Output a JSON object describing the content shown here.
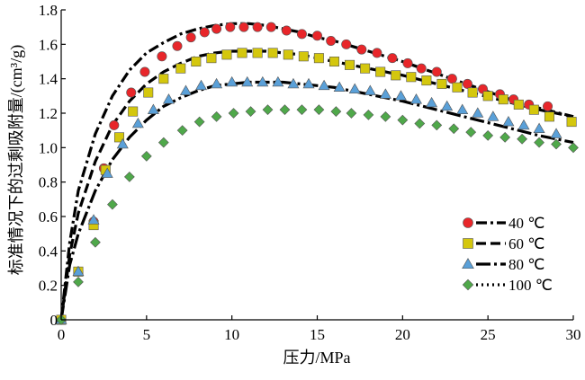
{
  "chart_data": {
    "type": "scatter",
    "xlabel": "压力/MPa",
    "ylabel": "标准情况下的过剩吸附量/(cm³/g)",
    "xlim": [
      0,
      30
    ],
    "ylim": [
      0,
      1.8
    ],
    "xticks": [
      "0",
      "5",
      "10",
      "15",
      "20",
      "25",
      "30"
    ],
    "yticks": [
      "0",
      "0.2",
      "0.4",
      "0.6",
      "0.8",
      "1.0",
      "1.2",
      "1.4",
      "1.6",
      "1.8"
    ],
    "grid": false,
    "legend_position": "bottom-right",
    "series": [
      {
        "name": "40 ℃",
        "marker": "circle",
        "marker_color": "#e8262a",
        "line_style": "dash-dot",
        "points": [
          [
            0,
            0
          ],
          [
            1,
            0.28
          ],
          [
            1.9,
            0.57
          ],
          [
            2.5,
            0.88
          ],
          [
            3.1,
            1.13
          ],
          [
            4.1,
            1.32
          ],
          [
            4.9,
            1.44
          ],
          [
            5.9,
            1.53
          ],
          [
            6.8,
            1.59
          ],
          [
            7.6,
            1.64
          ],
          [
            8.4,
            1.67
          ],
          [
            9.1,
            1.69
          ],
          [
            9.9,
            1.7
          ],
          [
            10.7,
            1.7
          ],
          [
            11.5,
            1.7
          ],
          [
            12.3,
            1.7
          ],
          [
            13.2,
            1.68
          ],
          [
            14.1,
            1.66
          ],
          [
            15,
            1.65
          ],
          [
            15.8,
            1.62
          ],
          [
            16.7,
            1.6
          ],
          [
            17.6,
            1.57
          ],
          [
            18.5,
            1.55
          ],
          [
            19.4,
            1.52
          ],
          [
            20.3,
            1.49
          ],
          [
            21.1,
            1.46
          ],
          [
            22,
            1.44
          ],
          [
            22.9,
            1.4
          ],
          [
            23.8,
            1.37
          ],
          [
            24.7,
            1.34
          ],
          [
            25.7,
            1.31
          ],
          [
            26.5,
            1.28
          ],
          [
            27.4,
            1.25
          ],
          [
            28.5,
            1.24
          ]
        ],
        "curve": [
          [
            0,
            0
          ],
          [
            0.5,
            0.45
          ],
          [
            1,
            0.75
          ],
          [
            2,
            1.08
          ],
          [
            3,
            1.3
          ],
          [
            4,
            1.45
          ],
          [
            5,
            1.55
          ],
          [
            6,
            1.61
          ],
          [
            7,
            1.66
          ],
          [
            8,
            1.69
          ],
          [
            9,
            1.71
          ],
          [
            10,
            1.72
          ],
          [
            11,
            1.72
          ],
          [
            12,
            1.71
          ],
          [
            13,
            1.69
          ],
          [
            14,
            1.67
          ],
          [
            15,
            1.64
          ],
          [
            16,
            1.62
          ],
          [
            18,
            1.56
          ],
          [
            20,
            1.5
          ],
          [
            22,
            1.43
          ],
          [
            24,
            1.36
          ],
          [
            26,
            1.29
          ],
          [
            28,
            1.23
          ],
          [
            30,
            1.18
          ]
        ]
      },
      {
        "name": "60 ℃",
        "marker": "square",
        "marker_color": "#d4c70d",
        "line_style": "dash",
        "points": [
          [
            0,
            0
          ],
          [
            1,
            0.28
          ],
          [
            1.9,
            0.55
          ],
          [
            2.6,
            0.87
          ],
          [
            3.4,
            1.06
          ],
          [
            4.2,
            1.21
          ],
          [
            5.1,
            1.32
          ],
          [
            6,
            1.4
          ],
          [
            7,
            1.46
          ],
          [
            7.9,
            1.5
          ],
          [
            8.8,
            1.52
          ],
          [
            9.7,
            1.54
          ],
          [
            10.6,
            1.55
          ],
          [
            11.5,
            1.55
          ],
          [
            12.4,
            1.55
          ],
          [
            13.3,
            1.54
          ],
          [
            14.2,
            1.53
          ],
          [
            15.1,
            1.52
          ],
          [
            16,
            1.5
          ],
          [
            16.9,
            1.48
          ],
          [
            17.8,
            1.46
          ],
          [
            18.7,
            1.44
          ],
          [
            19.6,
            1.42
          ],
          [
            20.5,
            1.41
          ],
          [
            21.4,
            1.39
          ],
          [
            22.3,
            1.37
          ],
          [
            23.2,
            1.35
          ],
          [
            24.1,
            1.32
          ],
          [
            25,
            1.3
          ],
          [
            25.9,
            1.28
          ],
          [
            26.8,
            1.25
          ],
          [
            27.7,
            1.22
          ],
          [
            28.6,
            1.18
          ],
          [
            29.9,
            1.15
          ]
        ],
        "curve": [
          [
            0,
            0
          ],
          [
            0.5,
            0.38
          ],
          [
            1,
            0.62
          ],
          [
            2,
            0.92
          ],
          [
            3,
            1.13
          ],
          [
            4,
            1.27
          ],
          [
            5,
            1.37
          ],
          [
            6,
            1.44
          ],
          [
            7,
            1.49
          ],
          [
            8,
            1.53
          ],
          [
            9,
            1.55
          ],
          [
            10,
            1.56
          ],
          [
            11,
            1.56
          ],
          [
            12,
            1.56
          ],
          [
            13,
            1.55
          ],
          [
            14,
            1.54
          ],
          [
            16,
            1.5
          ],
          [
            18,
            1.46
          ],
          [
            20,
            1.42
          ],
          [
            22,
            1.37
          ],
          [
            24,
            1.32
          ],
          [
            26,
            1.27
          ],
          [
            28,
            1.22
          ],
          [
            30,
            1.18
          ]
        ]
      },
      {
        "name": "80 ℃",
        "marker": "triangle",
        "marker_color": "#5aa0d8",
        "line_style": "long-dash-dot",
        "points": [
          [
            0,
            0
          ],
          [
            1,
            0.28
          ],
          [
            1.9,
            0.58
          ],
          [
            2.7,
            0.85
          ],
          [
            3.6,
            1.02
          ],
          [
            4.5,
            1.14
          ],
          [
            5.4,
            1.22
          ],
          [
            6.3,
            1.28
          ],
          [
            7.3,
            1.33
          ],
          [
            8.2,
            1.36
          ],
          [
            9.1,
            1.37
          ],
          [
            10,
            1.38
          ],
          [
            10.9,
            1.38
          ],
          [
            11.8,
            1.38
          ],
          [
            12.7,
            1.38
          ],
          [
            13.6,
            1.37
          ],
          [
            14.5,
            1.37
          ],
          [
            15.4,
            1.36
          ],
          [
            16.3,
            1.35
          ],
          [
            17.2,
            1.34
          ],
          [
            18.1,
            1.33
          ],
          [
            19,
            1.31
          ],
          [
            19.9,
            1.3
          ],
          [
            20.8,
            1.28
          ],
          [
            21.7,
            1.26
          ],
          [
            22.6,
            1.24
          ],
          [
            23.5,
            1.22
          ],
          [
            24.4,
            1.2
          ],
          [
            25.3,
            1.18
          ],
          [
            26.2,
            1.15
          ],
          [
            27.1,
            1.13
          ],
          [
            28,
            1.11
          ],
          [
            29,
            1.08
          ]
        ],
        "curve": [
          [
            0,
            0
          ],
          [
            0.5,
            0.32
          ],
          [
            1,
            0.5
          ],
          [
            2,
            0.75
          ],
          [
            3,
            0.93
          ],
          [
            4,
            1.06
          ],
          [
            5,
            1.16
          ],
          [
            6,
            1.24
          ],
          [
            7,
            1.29
          ],
          [
            8,
            1.33
          ],
          [
            9,
            1.36
          ],
          [
            10,
            1.37
          ],
          [
            11,
            1.38
          ],
          [
            12,
            1.38
          ],
          [
            13,
            1.38
          ],
          [
            14,
            1.37
          ],
          [
            15,
            1.36
          ],
          [
            16,
            1.35
          ],
          [
            18,
            1.31
          ],
          [
            20,
            1.27
          ],
          [
            22,
            1.22
          ],
          [
            24,
            1.17
          ],
          [
            26,
            1.12
          ],
          [
            28,
            1.07
          ],
          [
            30,
            1.03
          ]
        ]
      },
      {
        "name": "100 ℃",
        "marker": "diamond",
        "marker_color": "#4fa84a",
        "line_style": "dot",
        "points": [
          [
            0,
            0
          ],
          [
            1,
            0.22
          ],
          [
            2,
            0.45
          ],
          [
            3,
            0.67
          ],
          [
            4,
            0.83
          ],
          [
            5,
            0.95
          ],
          [
            6,
            1.03
          ],
          [
            7.1,
            1.1
          ],
          [
            8.1,
            1.15
          ],
          [
            9.1,
            1.18
          ],
          [
            10.1,
            1.2
          ],
          [
            11.1,
            1.21
          ],
          [
            12.1,
            1.22
          ],
          [
            13.1,
            1.22
          ],
          [
            14.1,
            1.22
          ],
          [
            15.1,
            1.22
          ],
          [
            16.1,
            1.21
          ],
          [
            17,
            1.2
          ],
          [
            18,
            1.19
          ],
          [
            19,
            1.18
          ],
          [
            20,
            1.16
          ],
          [
            21,
            1.14
          ],
          [
            22,
            1.13
          ],
          [
            23,
            1.11
          ],
          [
            24,
            1.09
          ],
          [
            25,
            1.07
          ],
          [
            26,
            1.06
          ],
          [
            27,
            1.05
          ],
          [
            28,
            1.03
          ],
          [
            29,
            1.02
          ],
          [
            30,
            1
          ]
        ]
      }
    ],
    "colors": {
      "axis": "#000000",
      "text": "#000000",
      "marker_edge": "#555555"
    }
  }
}
